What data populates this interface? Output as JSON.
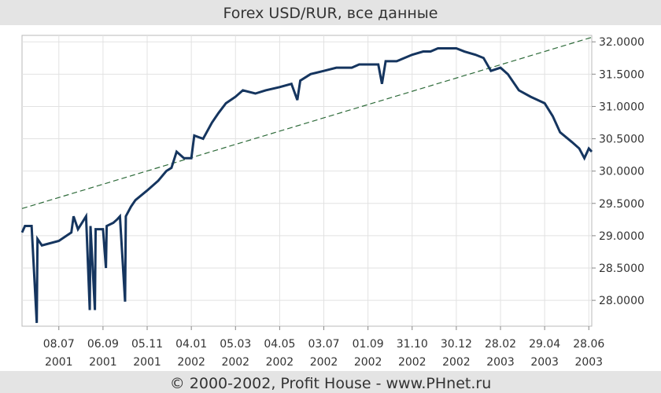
{
  "chart_data": {
    "type": "line",
    "title": "Forex USD/RUR, все данные",
    "footer": "© 2000-2002, Profit House - www.PHnet.ru",
    "xlim": [
      "2001-05-19",
      "2003-07-02"
    ],
    "xticks": [
      {
        "value": "2001-07-08",
        "label": "08.07",
        "year": "2001"
      },
      {
        "value": "2001-09-06",
        "label": "06.09",
        "year": "2001"
      },
      {
        "value": "2001-11-05",
        "label": "05.11",
        "year": "2001"
      },
      {
        "value": "2002-01-04",
        "label": "04.01",
        "year": "2002"
      },
      {
        "value": "2002-03-05",
        "label": "05.03",
        "year": "2002"
      },
      {
        "value": "2002-05-04",
        "label": "04.05",
        "year": "2002"
      },
      {
        "value": "2002-07-03",
        "label": "03.07",
        "year": "2002"
      },
      {
        "value": "2002-09-01",
        "label": "01.09",
        "year": "2002"
      },
      {
        "value": "2002-10-31",
        "label": "31.10",
        "year": "2002"
      },
      {
        "value": "2002-12-30",
        "label": "30.12",
        "year": "2002"
      },
      {
        "value": "2003-02-28",
        "label": "28.02",
        "year": "2003"
      },
      {
        "value": "2003-04-29",
        "label": "29.04",
        "year": "2003"
      },
      {
        "value": "2003-06-28",
        "label": "28.06",
        "year": "2003"
      }
    ],
    "ylim": [
      27.6,
      32.1
    ],
    "yticks": [
      {
        "value": 28,
        "label": "28.0000"
      },
      {
        "value": 28.5,
        "label": "28.5000"
      },
      {
        "value": 29,
        "label": "29.0000"
      },
      {
        "value": 29.5,
        "label": "29.5000"
      },
      {
        "value": 30,
        "label": "30.0000"
      },
      {
        "value": 30.5,
        "label": "30.5000"
      },
      {
        "value": 31,
        "label": "31.0000"
      },
      {
        "value": 31.5,
        "label": "31.5000"
      },
      {
        "value": 32,
        "label": "32.0000"
      }
    ],
    "grid": true,
    "series": [
      {
        "color": "#15355f",
        "x": [
          "2001-05-19",
          "2001-05-23",
          "2001-06-01",
          "2001-06-08",
          "2001-06-09",
          "2001-06-15",
          "2001-07-08",
          "2001-07-25",
          "2001-07-28",
          "2001-08-03",
          "2001-08-14",
          "2001-08-19",
          "2001-08-20",
          "2001-08-26",
          "2001-08-27",
          "2001-09-06",
          "2001-09-10",
          "2001-09-11",
          "2001-09-20",
          "2001-09-25",
          "2001-09-29",
          "2001-10-06",
          "2001-10-07",
          "2001-10-14",
          "2001-10-20",
          "2001-11-05",
          "2001-11-20",
          "2001-12-01",
          "2001-12-08",
          "2001-12-15",
          "2001-12-25",
          "2002-01-04",
          "2002-01-08",
          "2002-01-20",
          "2002-02-01",
          "2002-02-10",
          "2002-02-20",
          "2002-03-05",
          "2002-03-15",
          "2002-04-01",
          "2002-04-15",
          "2002-05-04",
          "2002-05-20",
          "2002-05-28",
          "2002-06-01",
          "2002-06-15",
          "2002-07-03",
          "2002-07-20",
          "2002-08-10",
          "2002-08-20",
          "2002-09-01",
          "2002-09-15",
          "2002-09-20",
          "2002-09-25",
          "2002-10-10",
          "2002-10-31",
          "2002-11-15",
          "2002-11-25",
          "2002-12-05",
          "2002-12-30",
          "2003-01-10",
          "2003-01-25",
          "2003-02-05",
          "2003-02-15",
          "2003-02-28",
          "2003-03-10",
          "2003-03-25",
          "2003-04-10",
          "2003-04-29",
          "2003-05-10",
          "2003-05-20",
          "2003-06-05",
          "2003-06-15",
          "2003-06-22",
          "2003-06-28",
          "2003-07-02"
        ],
        "values": [
          29.05,
          29.15,
          29.15,
          27.65,
          28.95,
          28.85,
          28.92,
          29.05,
          29.3,
          29.1,
          29.3,
          27.85,
          29.15,
          27.85,
          29.1,
          29.1,
          28.5,
          29.15,
          29.2,
          29.25,
          29.3,
          27.98,
          29.3,
          29.45,
          29.55,
          29.7,
          29.85,
          30.0,
          30.05,
          30.3,
          30.2,
          30.2,
          30.55,
          30.5,
          30.75,
          30.9,
          31.05,
          31.15,
          31.25,
          31.2,
          31.25,
          31.3,
          31.35,
          31.1,
          31.4,
          31.5,
          31.55,
          31.6,
          31.6,
          31.65,
          31.65,
          31.65,
          31.35,
          31.7,
          31.7,
          31.8,
          31.85,
          31.85,
          31.9,
          31.9,
          31.85,
          31.8,
          31.75,
          31.55,
          31.6,
          31.5,
          31.25,
          31.15,
          31.05,
          30.85,
          30.6,
          30.45,
          30.35,
          30.2,
          30.35,
          30.3
        ]
      }
    ],
    "trend": {
      "color": "#2e6b3a",
      "x": [
        "2001-05-19",
        "2003-07-02"
      ],
      "values": [
        29.42,
        32.07
      ]
    }
  }
}
